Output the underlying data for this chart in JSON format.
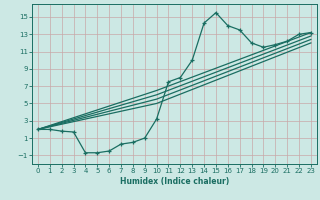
{
  "xlabel": "Humidex (Indice chaleur)",
  "bg_color": "#cce8e4",
  "grid_color": "#b0c8c4",
  "line_color": "#1a6e62",
  "xlim": [
    -0.5,
    23.5
  ],
  "ylim": [
    -2.0,
    16.5
  ],
  "xticks": [
    0,
    1,
    2,
    3,
    4,
    5,
    6,
    7,
    8,
    9,
    10,
    11,
    12,
    13,
    14,
    15,
    16,
    17,
    18,
    19,
    20,
    21,
    22,
    23
  ],
  "yticks": [
    -1,
    1,
    3,
    5,
    7,
    9,
    11,
    13,
    15
  ],
  "main_curve_x": [
    0,
    1,
    2,
    3,
    4,
    5,
    6,
    7,
    8,
    9,
    10,
    11,
    12,
    13,
    14,
    15,
    16,
    17,
    18,
    19,
    20,
    21,
    22,
    23
  ],
  "main_curve_y": [
    2.0,
    2.0,
    1.8,
    1.7,
    -0.7,
    -0.7,
    -0.5,
    0.3,
    0.5,
    1.0,
    3.2,
    7.5,
    8.0,
    10.0,
    14.3,
    15.5,
    14.0,
    13.5,
    12.0,
    11.5,
    11.8,
    12.2,
    13.0,
    13.2
  ],
  "straight_lines": [
    {
      "x": [
        0,
        10,
        23
      ],
      "y": [
        2.0,
        6.5,
        13.2
      ]
    },
    {
      "x": [
        0,
        10,
        23
      ],
      "y": [
        2.0,
        6.0,
        12.8
      ]
    },
    {
      "x": [
        0,
        10,
        23
      ],
      "y": [
        2.0,
        5.5,
        12.4
      ]
    },
    {
      "x": [
        0,
        10,
        23
      ],
      "y": [
        2.0,
        5.0,
        12.0
      ]
    }
  ]
}
